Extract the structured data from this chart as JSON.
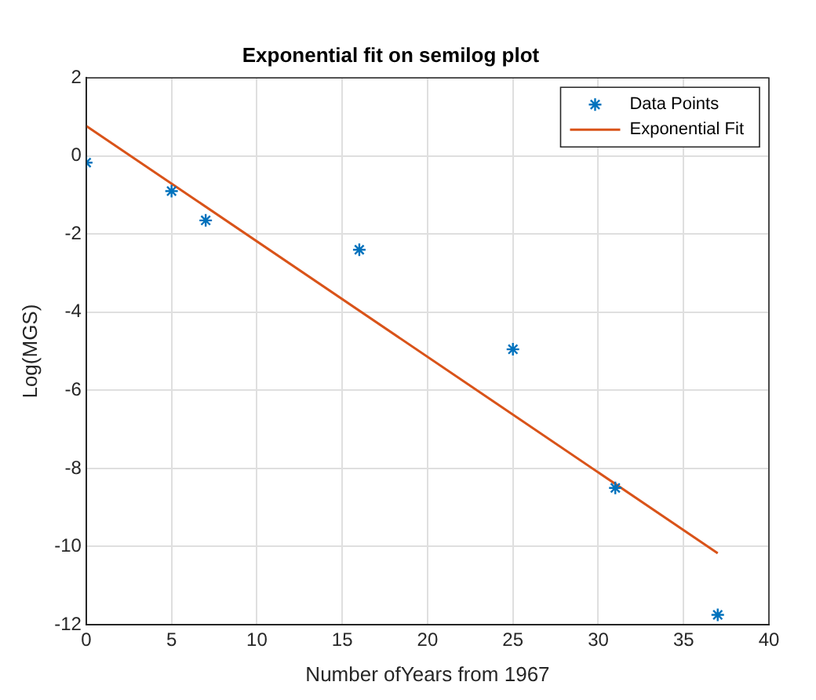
{
  "chart_data": {
    "type": "scatter",
    "title": "Exponential fit on semilog plot",
    "xlabel": "Number ofYears from 1967",
    "ylabel": "Log(MGS)",
    "series": [
      {
        "name": "Data Points",
        "marker": "cross",
        "color": "#0072bd",
        "x": [
          0,
          5,
          7,
          16,
          25,
          31,
          37
        ],
        "values": [
          -0.17,
          -0.9,
          -1.65,
          -2.4,
          -4.95,
          -8.5,
          -11.75
        ]
      },
      {
        "name": "Exponential Fit",
        "type": "line",
        "color": "#d95319",
        "x": [
          0,
          37
        ],
        "values": [
          0.77,
          -10.17
        ]
      }
    ],
    "xlim": [
      0,
      40
    ],
    "xticks": [
      0,
      5,
      10,
      15,
      20,
      25,
      30,
      35,
      40
    ],
    "ylim": [
      -12,
      2
    ],
    "yticks": [
      -12,
      -10,
      -8,
      -6,
      -4,
      -2,
      0,
      2
    ],
    "grid": true,
    "legend": "top right"
  }
}
